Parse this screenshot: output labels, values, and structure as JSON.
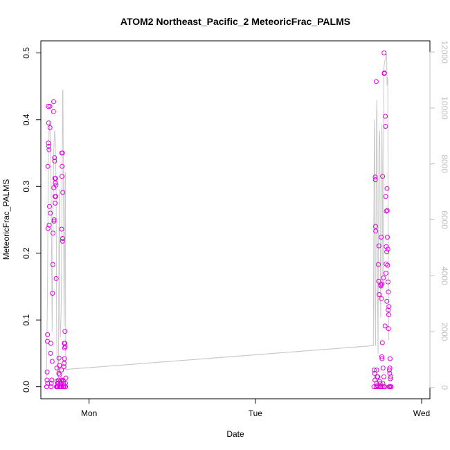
{
  "chart_data": {
    "type": "scatter",
    "title": "ATOM2 Northeast_Pacific_2 MeteoricFrac_PALMS",
    "xlabel": "Date",
    "ylabel": "MeteoricFrac_PALMS",
    "x_ticks": [
      "Mon",
      "Tue",
      "Wed"
    ],
    "x_range_days": [
      -0.29,
      2.05
    ],
    "y_left_range": [
      -0.018,
      0.518
    ],
    "y_left_ticks": [
      "0.0",
      "0.1",
      "0.2",
      "0.3",
      "0.4",
      "0.5"
    ],
    "y_right_range": [
      -400,
      12400
    ],
    "y_right_ticks": [
      "0",
      "2000",
      "4000",
      "6000",
      "8000",
      "10000",
      "12000"
    ],
    "grid": false,
    "colors": {
      "points": "#e000e0",
      "altitude_line": "#c8c8c8",
      "right_axis": "#c0c0c0",
      "text": "#000000"
    },
    "series": [
      {
        "type": "scatter",
        "axis": "left",
        "values": [
          [
            -0.255,
            0.0
          ],
          [
            -0.253,
            0.01
          ],
          [
            -0.252,
            0.022
          ],
          [
            -0.251,
            0.068
          ],
          [
            -0.25,
            0.078
          ],
          [
            -0.249,
            0.005
          ],
          [
            -0.248,
            0.33
          ],
          [
            -0.247,
            0.237
          ],
          [
            -0.246,
            0.42
          ],
          [
            -0.244,
            0.365
          ],
          [
            -0.243,
            0.395
          ],
          [
            -0.242,
            0.36
          ],
          [
            -0.241,
            0.355
          ],
          [
            -0.24,
            0.242
          ],
          [
            -0.238,
            0.27
          ],
          [
            -0.236,
            0.42
          ],
          [
            -0.235,
            0.388
          ],
          [
            -0.233,
            0.26
          ],
          [
            -0.232,
            0.05
          ],
          [
            -0.23,
            0.065
          ],
          [
            -0.229,
            0.0
          ],
          [
            -0.227,
            0.005
          ],
          [
            -0.224,
            0.01
          ],
          [
            -0.222,
            0.038
          ],
          [
            -0.22,
            0.14
          ],
          [
            -0.218,
            0.183
          ],
          [
            -0.217,
            0.23
          ],
          [
            -0.214,
            0.412
          ],
          [
            -0.213,
            0.427
          ],
          [
            -0.212,
            0.298
          ],
          [
            -0.211,
            0.248
          ],
          [
            -0.21,
            0.25
          ],
          [
            -0.208,
            0.343
          ],
          [
            -0.207,
            0.338
          ],
          [
            -0.206,
            0.312
          ],
          [
            -0.205,
            0.285
          ],
          [
            -0.204,
            0.275
          ],
          [
            -0.203,
            0.305
          ],
          [
            -0.201,
            0.312
          ],
          [
            -0.2,
            0.285
          ],
          [
            -0.199,
            0.302
          ],
          [
            -0.198,
            0.162
          ],
          [
            -0.196,
            0.0
          ],
          [
            -0.194,
            0.028
          ],
          [
            -0.193,
            0.008
          ],
          [
            -0.192,
            0.0
          ],
          [
            -0.19,
            0.005
          ],
          [
            -0.188,
            0.0
          ],
          [
            -0.186,
            0.005
          ],
          [
            -0.184,
            0.01
          ],
          [
            -0.182,
            0.02
          ],
          [
            -0.181,
            0.043
          ],
          [
            -0.18,
            0.0
          ],
          [
            -0.178,
            0.032
          ],
          [
            -0.177,
            0.018
          ],
          [
            -0.175,
            0.008
          ],
          [
            -0.173,
            0.0
          ],
          [
            -0.171,
            0.005
          ],
          [
            -0.169,
            0.0
          ],
          [
            -0.167,
            0.01
          ],
          [
            -0.166,
            0.025
          ],
          [
            -0.165,
            0.236
          ],
          [
            -0.164,
            0.35
          ],
          [
            -0.163,
            0.315
          ],
          [
            -0.162,
            0.33
          ],
          [
            -0.161,
            0.35
          ],
          [
            -0.16,
            0.218
          ],
          [
            -0.159,
            0.222
          ],
          [
            -0.158,
            0.291
          ],
          [
            -0.157,
            0.01
          ],
          [
            -0.156,
            0.0
          ],
          [
            -0.155,
            0.005
          ],
          [
            -0.154,
            0.008
          ],
          [
            -0.152,
            0.0
          ],
          [
            -0.151,
            0.03
          ],
          [
            -0.15,
            0.035
          ],
          [
            -0.149,
            0.065
          ],
          [
            -0.148,
            0.042
          ],
          [
            -0.147,
            0.058
          ],
          [
            -0.146,
            0.065
          ],
          [
            -0.145,
            0.083
          ],
          [
            -0.144,
            0.06
          ],
          [
            -0.143,
            0.0
          ],
          [
            -0.142,
            0.005
          ],
          [
            -0.141,
            0.0
          ],
          [
            -0.14,
            0.013
          ],
          [
            1.713,
            0.0
          ],
          [
            1.715,
            0.025
          ],
          [
            1.717,
            0.02
          ],
          [
            1.719,
            0.01
          ],
          [
            1.721,
            0.314
          ],
          [
            1.722,
            0.31
          ],
          [
            1.723,
            0.24
          ],
          [
            1.724,
            0.233
          ],
          [
            1.726,
            0.0
          ],
          [
            1.727,
            0.457
          ],
          [
            1.729,
            0.005
          ],
          [
            1.73,
            0.025
          ],
          [
            1.732,
            0.015
          ],
          [
            1.734,
            0.002
          ],
          [
            1.736,
            0.015
          ],
          [
            1.738,
            0.0
          ],
          [
            1.74,
            0.183
          ],
          [
            1.742,
            0.158
          ],
          [
            1.743,
            0.211
          ],
          [
            1.745,
            0.138
          ],
          [
            1.747,
            0.008
          ],
          [
            1.749,
            0.0
          ],
          [
            1.751,
            0.005
          ],
          [
            1.753,
            0.0
          ],
          [
            1.754,
            0.153
          ],
          [
            1.755,
            0.151
          ],
          [
            1.757,
            0.224
          ],
          [
            1.758,
            0.132
          ],
          [
            1.76,
            0.045
          ],
          [
            1.762,
            0.042
          ],
          [
            1.763,
            0.0
          ],
          [
            1.764,
            0.066
          ],
          [
            1.765,
            0.315
          ],
          [
            1.767,
            0.005
          ],
          [
            1.768,
            0.028
          ],
          [
            1.77,
            0.163
          ],
          [
            1.772,
            0.0
          ],
          [
            1.773,
            0.015
          ],
          [
            1.775,
            0.469
          ],
          [
            1.776,
            0.47
          ],
          [
            1.778,
            0.0
          ],
          [
            1.78,
            0.091
          ],
          [
            1.782,
            0.405
          ],
          [
            1.783,
            0.39
          ],
          [
            1.784,
            0.285
          ],
          [
            1.786,
            0.184
          ],
          [
            1.787,
            0.21
          ],
          [
            1.788,
            0.263
          ],
          [
            1.79,
            0.202
          ],
          [
            1.791,
            0.128
          ],
          [
            1.792,
            0.297
          ],
          [
            1.793,
            0.264
          ],
          [
            1.794,
            0.224
          ],
          [
            1.795,
            0.182
          ],
          [
            1.797,
            0.206
          ],
          [
            1.798,
            0.157
          ],
          [
            1.799,
            0.115
          ],
          [
            1.8,
            0.142
          ],
          [
            1.801,
            0.087
          ],
          [
            1.802,
            0.108
          ],
          [
            1.804,
            0.0
          ],
          [
            1.806,
            0.025
          ],
          [
            1.807,
            0.0
          ],
          [
            1.808,
            0.02
          ],
          [
            1.809,
            0.028
          ],
          [
            1.81,
            0.042
          ],
          [
            1.812,
            0.012
          ],
          [
            1.813,
            0.0
          ],
          [
            1.815,
            0.015
          ],
          [
            1.817,
            0.0
          ],
          [
            1.774,
            0.5
          ],
          [
            1.761,
            0.154
          ],
          [
            1.785,
            0.17
          ],
          [
            1.803,
            0.12
          ]
        ]
      },
      {
        "type": "line",
        "axis": "right",
        "values": [
          [
            -0.256,
            400
          ],
          [
            -0.25,
            3500
          ],
          [
            -0.245,
            8300
          ],
          [
            -0.24,
            9200
          ],
          [
            -0.237,
            9500
          ],
          [
            -0.233,
            8800
          ],
          [
            -0.228,
            7000
          ],
          [
            -0.222,
            2000
          ],
          [
            -0.217,
            6000
          ],
          [
            -0.212,
            8500
          ],
          [
            -0.207,
            9200
          ],
          [
            -0.203,
            8900
          ],
          [
            -0.198,
            7000
          ],
          [
            -0.195,
            2000
          ],
          [
            -0.192,
            800
          ],
          [
            -0.188,
            400
          ],
          [
            -0.184,
            900
          ],
          [
            -0.18,
            6800
          ],
          [
            -0.178,
            7100
          ],
          [
            -0.176,
            2500
          ],
          [
            -0.172,
            1800
          ],
          [
            -0.168,
            2700
          ],
          [
            -0.165,
            4500
          ],
          [
            -0.162,
            7200
          ],
          [
            -0.159,
            10600
          ],
          [
            -0.157,
            10650
          ],
          [
            -0.154,
            6500
          ],
          [
            -0.15,
            2200
          ],
          [
            -0.147,
            4200
          ],
          [
            -0.144,
            7700
          ],
          [
            -0.142,
            7650
          ],
          [
            -0.141,
            650
          ],
          [
            1.71,
            1500
          ],
          [
            1.712,
            5000
          ],
          [
            1.714,
            7500
          ],
          [
            1.716,
            9200
          ],
          [
            1.718,
            9600
          ],
          [
            1.72,
            3000
          ],
          [
            1.723,
            1500
          ],
          [
            1.727,
            7500
          ],
          [
            1.729,
            9800
          ],
          [
            1.731,
            10300
          ],
          [
            1.733,
            7000
          ],
          [
            1.735,
            3500
          ],
          [
            1.738,
            1200
          ],
          [
            1.74,
            5000
          ],
          [
            1.743,
            8500
          ],
          [
            1.746,
            9200
          ],
          [
            1.748,
            9000
          ],
          [
            1.751,
            5500
          ],
          [
            1.754,
            2500
          ],
          [
            1.758,
            6500
          ],
          [
            1.761,
            9400
          ],
          [
            1.764,
            7800
          ],
          [
            1.767,
            3500
          ],
          [
            1.77,
            5200
          ],
          [
            1.773,
            11400
          ],
          [
            1.776,
            11600
          ],
          [
            1.78,
            11700
          ],
          [
            1.784,
            11800
          ],
          [
            1.788,
            11950
          ],
          [
            1.79,
            11900
          ],
          [
            1.792,
            10800
          ],
          [
            1.795,
            11100
          ],
          [
            1.797,
            11000
          ],
          [
            1.801,
            2500
          ],
          [
            1.803,
            1700
          ]
        ]
      },
      {
        "type": "line",
        "axis": "right",
        "values": [
          [
            -0.14,
            650
          ],
          [
            1.708,
            1500
          ]
        ]
      }
    ]
  }
}
